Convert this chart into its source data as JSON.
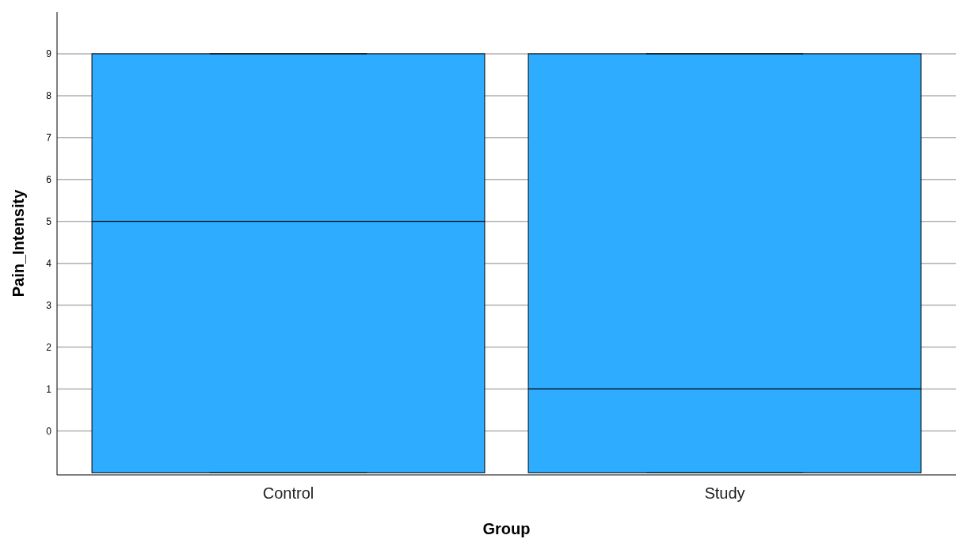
{
  "chart_data": {
    "type": "box",
    "xlabel": "Group",
    "ylabel": "Pain_Intensity",
    "categories": [
      "Control",
      "Study"
    ],
    "color": "#2eacff",
    "boxes": [
      {
        "low": -1,
        "q1": -1,
        "median": 5,
        "q3": 9,
        "high": 9
      },
      {
        "low": -1,
        "q1": -1,
        "median": 1,
        "q3": 9,
        "high": 9
      }
    ],
    "ylim": [
      -1.05,
      10
    ],
    "yticks": [
      0,
      1,
      2,
      3,
      4,
      5,
      6,
      7,
      8,
      9
    ],
    "grid": "y"
  }
}
